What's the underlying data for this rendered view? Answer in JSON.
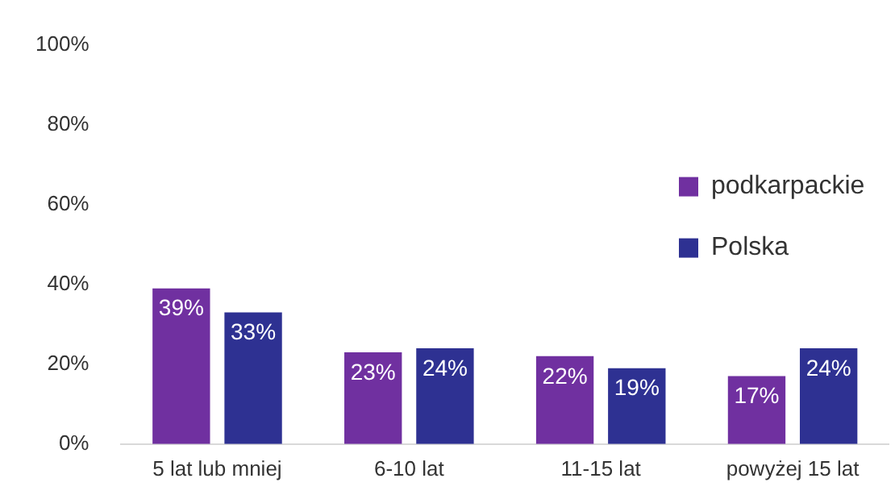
{
  "chart_data": {
    "type": "bar",
    "categories": [
      "5 lat lub mniej",
      "6-10 lat",
      "11-15 lat",
      "powyżej 15 lat"
    ],
    "series": [
      {
        "name": "podkarpackie",
        "color": "#7030a0",
        "values": [
          39,
          23,
          22,
          17
        ],
        "value_labels": [
          "39%",
          "23%",
          "22%",
          "17%"
        ]
      },
      {
        "name": "Polska",
        "color": "#2e3192",
        "values": [
          33,
          24,
          19,
          24
        ],
        "value_labels": [
          "33%",
          "24%",
          "19%",
          "24%"
        ]
      }
    ],
    "ylim": [
      0,
      100
    ],
    "yticks": [
      {
        "value": 0,
        "label": "0%"
      },
      {
        "value": 20,
        "label": "20%"
      },
      {
        "value": 40,
        "label": "40%"
      },
      {
        "value": 60,
        "label": "60%"
      },
      {
        "value": 80,
        "label": "80%"
      },
      {
        "value": 100,
        "label": "100%"
      }
    ],
    "grid": false,
    "legend": "right"
  }
}
